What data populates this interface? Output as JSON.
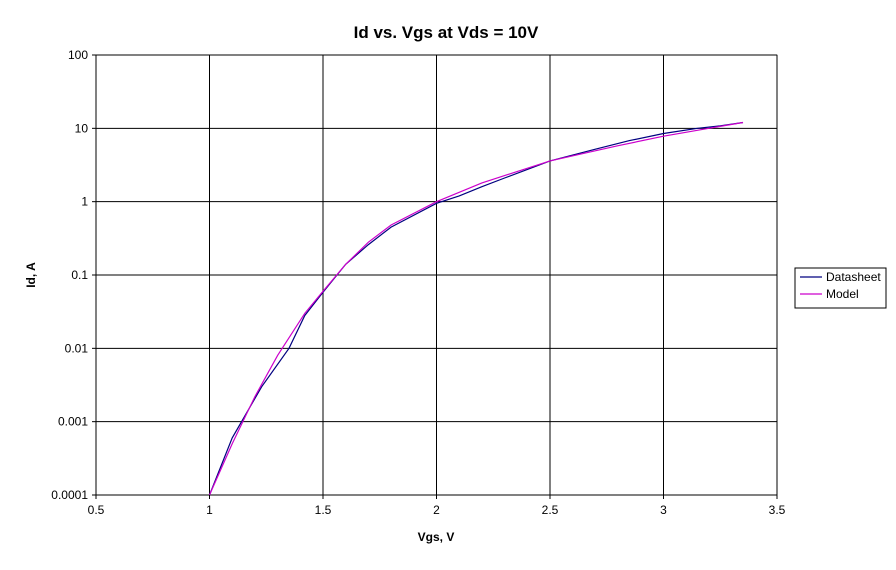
{
  "chart_data": {
    "type": "line",
    "title": "Id vs. Vgs at Vds = 10V",
    "xlabel": "Vgs, V",
    "ylabel": "Id, A",
    "xlim": [
      0.5,
      3.5
    ],
    "ylim": [
      0.0001,
      100
    ],
    "yscale": "log",
    "grid": true,
    "legend_position": "right",
    "x_ticks": [
      0.5,
      1,
      1.5,
      2,
      2.5,
      3,
      3.5
    ],
    "x_tick_labels": [
      "0.5",
      "1",
      "1.5",
      "2",
      "2.5",
      "3",
      "3.5"
    ],
    "y_ticks": [
      0.0001,
      0.001,
      0.01,
      0.1,
      1,
      10,
      100
    ],
    "y_tick_labels": [
      "0.0001",
      "0.001",
      "0.01",
      "0.1",
      "1",
      "10",
      "100"
    ],
    "series": [
      {
        "name": "Datasheet",
        "color": "#000080",
        "x": [
          1.0,
          1.1,
          1.23,
          1.35,
          1.42,
          1.5,
          1.6,
          1.7,
          1.8,
          2.0,
          2.1,
          2.2,
          2.3,
          2.5,
          2.7,
          2.85,
          3.0,
          3.15,
          3.25,
          3.35
        ],
        "y": [
          0.0001,
          0.0006,
          0.003,
          0.01,
          0.028,
          0.058,
          0.14,
          0.26,
          0.45,
          0.95,
          1.2,
          1.6,
          2.1,
          3.6,
          5.2,
          6.8,
          8.5,
          10,
          10.8,
          12
        ]
      },
      {
        "name": "Model",
        "color": "#cc00cc",
        "x": [
          1.0,
          1.1,
          1.2,
          1.3,
          1.42,
          1.5,
          1.6,
          1.7,
          1.8,
          2.0,
          2.2,
          2.5,
          2.8,
          3.0,
          3.2,
          3.35
        ],
        "y": [
          0.0001,
          0.0005,
          0.0022,
          0.008,
          0.03,
          0.06,
          0.14,
          0.28,
          0.48,
          1.0,
          1.8,
          3.6,
          5.8,
          7.8,
          10,
          12
        ]
      }
    ]
  }
}
